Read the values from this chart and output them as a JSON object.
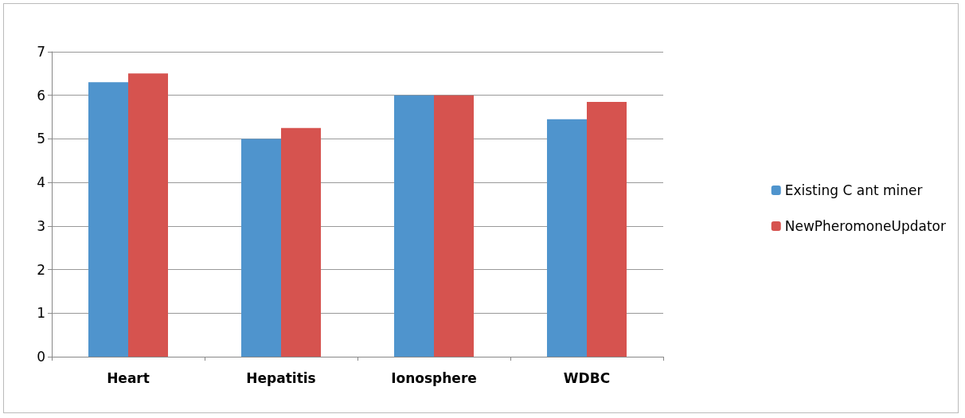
{
  "chart_data": {
    "type": "bar",
    "categories": [
      "Heart",
      "Hepatitis",
      "Ionosphere",
      "WDBC"
    ],
    "series": [
      {
        "name": "Existing C ant miner",
        "color": "#4f94cd",
        "values": [
          6.3,
          5.0,
          6.0,
          5.45
        ]
      },
      {
        "name": "NewPheromoneUpdator",
        "color": "#d6534f",
        "values": [
          6.5,
          5.25,
          6.0,
          5.85
        ]
      }
    ],
    "ylim": [
      0,
      7
    ],
    "yticks": [
      0,
      1,
      2,
      3,
      4,
      5,
      6,
      7
    ],
    "grid": "y",
    "legend": "right"
  }
}
